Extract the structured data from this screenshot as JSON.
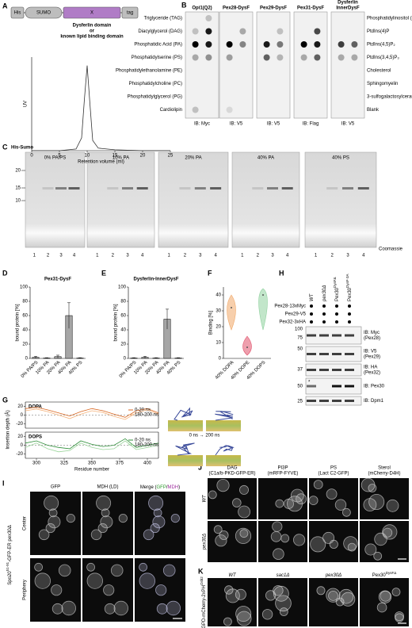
{
  "figure": {
    "letters": [
      "A",
      "B",
      "C",
      "D",
      "E",
      "F",
      "G",
      "H",
      "I",
      "J",
      "K"
    ],
    "a": {
      "construct": [
        "His",
        "SUMO",
        "X",
        "tag"
      ],
      "caption": [
        "Dysferlin domain",
        "or",
        "known lipid binding domain"
      ]
    },
    "b": {
      "blots": [
        [
          "Opi1(Q2)"
        ],
        [
          "Pex28-DysF"
        ],
        [
          "Pex29-DysF"
        ],
        [
          "Pex31-DysF"
        ],
        [
          "Dysferlin",
          "InnerDysF"
        ]
      ],
      "ib": [
        "IB: Myc",
        "IB: V5",
        "IB: V5",
        "IB: Flag",
        "IB: V5"
      ],
      "lipids_left": [
        "Triglyceride (TAG)",
        "Diacylglycerol (DAG)",
        "Phosphatidic Acid (PA)",
        "Phosphatidylserine (PS)",
        "Phosphatidylethanolamine (PE)",
        "Phosphatidylcholine (PC)",
        "Phosphatidylglycerol (PG)",
        "Cardiolipin"
      ],
      "lipids_right": [
        "Phosphatidylinositol (PI)",
        "PtdIns(4)P",
        "PtdIns(4,5)P₂",
        "PtdIns(3,4,5)P₃",
        "Cholesterol",
        "Sphingomyelin",
        "3-sulfogalactosylceramide",
        "Blank"
      ]
    },
    "c": {
      "title": "His-Sumo",
      "gels": [
        "0% PA/PS",
        "10% PA",
        "20% PA",
        "40% PA",
        "40% PS"
      ],
      "mw": [
        20,
        15,
        10
      ],
      "lanes": [
        "1",
        "2",
        "3",
        "4"
      ],
      "stain": "Coomassie"
    },
    "g": {
      "y_label": "Insertion depth (Å)",
      "time": "0 ns → 200 ns"
    },
    "h": {
      "strains": [
        {
          "base": "WT"
        },
        {
          "base": "pex30Δ"
        },
        {
          "base": "Pex30",
          "sup": "DysFΔ"
        },
        {
          "base": "Pex30",
          "sup": "DysF-3A"
        }
      ],
      "tags": [
        "Pex28-13xMyc",
        "Pex29-V5",
        "Pex32-3xHA"
      ],
      "mw": [
        100,
        75,
        50,
        37,
        50,
        25
      ],
      "ib": [
        [
          "IB: Myc",
          "(Pex28)"
        ],
        [
          "IB: V5",
          "(Pex29)"
        ],
        [
          "IB: HA",
          "(Pex32)"
        ],
        [
          "IB: Pex30"
        ],
        [
          "IB: Dpm1"
        ]
      ],
      "star": "*"
    },
    "i": {
      "headers": [
        "GFP",
        "MDH (LD)"
      ],
      "merge": [
        "Merge (",
        "GFP",
        "/",
        "MDH",
        ")"
      ],
      "rows": [
        "Center",
        "Periphery"
      ],
      "strain": {
        "base": "Spo20",
        "sup": "51-91",
        "rest": "-GFP-ER pex30Δ"
      }
    },
    "j": {
      "headers": [
        [
          "DAG",
          "(C1a/b-PKD-GFP-ER)"
        ],
        [
          "PI3P",
          "(mRFP-FYVE)"
        ],
        [
          "PS",
          "(Lact C2-GFP)"
        ],
        [
          "Sterol",
          "(mCherry-D4H)"
        ]
      ],
      "rows": [
        "WT",
        "pex30Δ"
      ]
    },
    "k": {
      "headers": [
        {
          "base": "WT"
        },
        {
          "base": "sac1Δ"
        },
        {
          "base": "pex30Δ"
        },
        {
          "base": "Pex30",
          "sup": "DysFΔ"
        }
      ],
      "strain": {
        "base": "GPD-mCherry-2xPH",
        "sup": "Osh2"
      }
    }
  },
  "chart_data": [
    {
      "type": "line",
      "x_label": "Retention volume (ml)",
      "y_label": "UV",
      "x": [
        0,
        5,
        8,
        9,
        9.5,
        10,
        10.5,
        11,
        12,
        15,
        20,
        25
      ],
      "values": [
        0,
        0,
        2,
        15,
        60,
        100,
        55,
        12,
        3,
        1,
        0,
        0
      ],
      "color": "#333333",
      "xlim": [
        0,
        25
      ],
      "xticks": [
        0,
        5,
        10,
        15,
        20,
        25
      ],
      "ylim": [
        0,
        110
      ]
    },
    {
      "type": "bar",
      "title": "Pex31-DysF",
      "y_label": "bound protein [%]",
      "categories": [
        "0% PA/PS",
        "10% PA",
        "20% PA",
        "40% PA",
        "40% PS"
      ],
      "values": [
        1.5,
        0.5,
        2.5,
        60,
        0.5
      ],
      "errors": [
        1.5,
        0.5,
        2,
        18,
        0.5
      ],
      "color": "#a6a6a6",
      "ylim": [
        0,
        100
      ],
      "yticks": [
        0,
        20,
        40,
        60,
        80,
        100
      ]
    },
    {
      "type": "bar",
      "title": "Dysferlin-InnerDysF",
      "y_label": "bound protein [%]",
      "categories": [
        "0% PA/PS",
        "10% PA",
        "20% PA",
        "40% PA",
        "40% PS"
      ],
      "values": [
        0.5,
        1.5,
        0.5,
        55,
        0.5
      ],
      "errors": [
        0.5,
        1.5,
        0.5,
        14,
        0.5
      ],
      "color": "#a6a6a6",
      "ylim": [
        0,
        100
      ],
      "yticks": [
        0,
        20,
        40,
        60,
        80,
        100
      ]
    },
    {
      "type": "violin",
      "y_label": "Binding [%]",
      "categories": [
        "40% DOPA",
        "40% DOPE",
        "40% DOPS"
      ],
      "medians": [
        32,
        7,
        40
      ],
      "mins": [
        18,
        2,
        18
      ],
      "maxs": [
        40,
        14,
        44
      ],
      "colors": [
        "#f0a868",
        "#e0506a",
        "#8fd19e"
      ],
      "ylim": [
        0,
        45
      ],
      "yticks": [
        0,
        10,
        20,
        30,
        40
      ]
    },
    {
      "type": "line",
      "title": "DOPA",
      "frame": true,
      "zero_line": true,
      "x": [
        290,
        300,
        310,
        320,
        330,
        340,
        350,
        360,
        370,
        380,
        390,
        400,
        410
      ],
      "series": [
        {
          "name": "0-20 ns",
          "color": "#d9661f",
          "values": [
            15,
            18,
            12,
            5,
            -2,
            8,
            15,
            10,
            2,
            -5,
            10,
            15,
            5
          ]
        },
        {
          "name": "180-200 ns",
          "color": "#f5b27a",
          "values": [
            10,
            14,
            8,
            0,
            -8,
            2,
            10,
            6,
            -3,
            -10,
            5,
            12,
            2
          ]
        }
      ],
      "xlim": [
        290,
        410
      ],
      "ylim": [
        -30,
        30
      ],
      "yticks": [
        20,
        0,
        -20
      ],
      "legend": "right"
    },
    {
      "type": "line",
      "title": "DOPS",
      "frame": true,
      "zero_line": true,
      "x_label": "Residue number",
      "x": [
        290,
        300,
        310,
        320,
        330,
        340,
        350,
        360,
        370,
        380,
        390,
        400,
        410
      ],
      "series": [
        {
          "name": "0-20 ns",
          "color": "#2f8f3a",
          "values": [
            5,
            10,
            0,
            -5,
            -8,
            10,
            2,
            -3,
            0,
            15,
            -5,
            0,
            5
          ]
        },
        {
          "name": "180-200 ns",
          "color": "#9bd49b",
          "values": [
            -5,
            5,
            -8,
            -15,
            -12,
            5,
            -5,
            -10,
            -8,
            10,
            -10,
            -5,
            0
          ]
        }
      ],
      "xlim": [
        290,
        410
      ],
      "xticks": [
        300,
        325,
        350,
        375,
        400
      ],
      "ylim": [
        -30,
        30
      ],
      "yticks": [
        20,
        0,
        -20
      ],
      "legend": "right"
    }
  ]
}
